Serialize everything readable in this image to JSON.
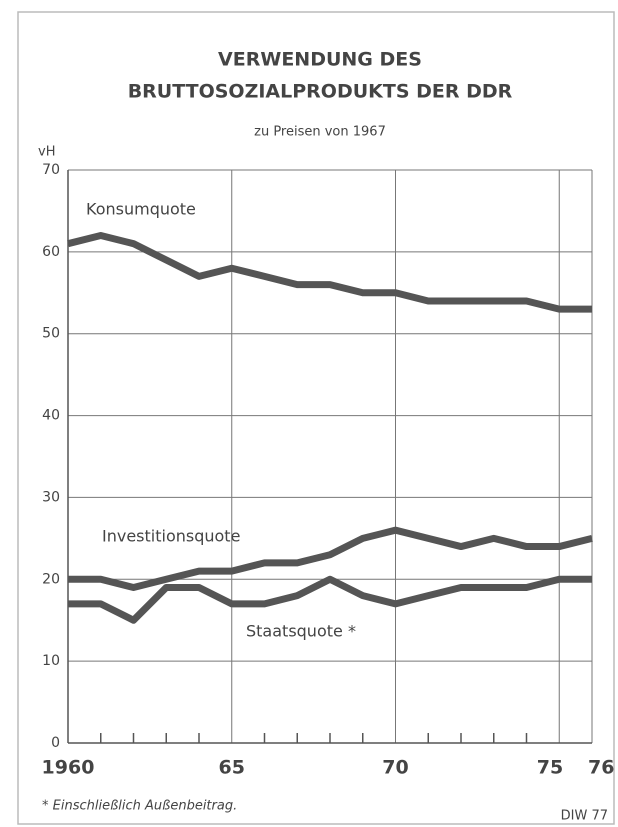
{
  "chart_data": {
    "type": "line",
    "title": [
      "VERWENDUNG DES",
      "BRUTTOSOZIALPRODUKTS DER DDR"
    ],
    "subtitle": "zu Preisen von 1967",
    "y_label": "vH",
    "footnote": "* Einschließlich Außenbeitrag.",
    "source": "DIW 77",
    "x": [
      1960,
      1961,
      1962,
      1963,
      1964,
      1965,
      1966,
      1967,
      1968,
      1969,
      1970,
      1971,
      1972,
      1973,
      1974,
      1975,
      1976
    ],
    "series": [
      {
        "name": "Konsumquote",
        "color": "#555555",
        "values": [
          61,
          62,
          61,
          59,
          57,
          58,
          57,
          56,
          56,
          55,
          55,
          54,
          54,
          54,
          54,
          53,
          53
        ]
      },
      {
        "name": "Investitionsquote",
        "color": "#555555",
        "values": [
          20,
          20,
          19,
          20,
          21,
          21,
          22,
          22,
          23,
          25,
          26,
          25,
          24,
          25,
          24,
          24,
          25
        ]
      },
      {
        "name": "Staatsquote *",
        "color": "#555555",
        "values": [
          17,
          17,
          15,
          19,
          19,
          17,
          17,
          18,
          20,
          18,
          17,
          18,
          19,
          19,
          19,
          20,
          20
        ]
      }
    ],
    "xlim": [
      1960,
      1976
    ],
    "xticks": [
      1960,
      {
        "value": 1965,
        "label": "65"
      },
      {
        "value": 1970,
        "label": "70"
      },
      {
        "value": 1975,
        "label": "75"
      },
      {
        "value": 1976,
        "label": "76"
      }
    ],
    "xminorticks": [
      1961,
      1962,
      1963,
      1964,
      1966,
      1967,
      1968,
      1969,
      1971,
      1972,
      1973,
      1974
    ],
    "ylim": [
      0,
      70
    ],
    "yticks": [
      0,
      10,
      20,
      30,
      40,
      50,
      60,
      70
    ],
    "grid": true
  }
}
